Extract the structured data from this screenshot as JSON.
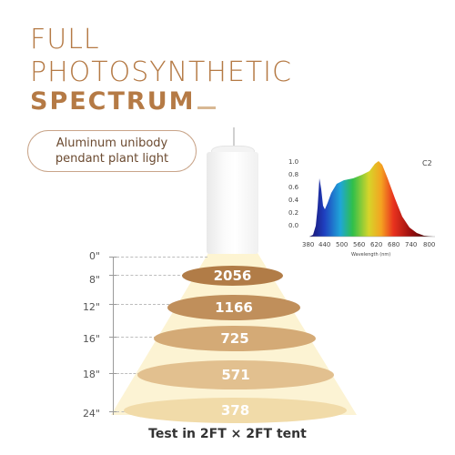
{
  "title": {
    "line1": "FULL",
    "line2": "PHOTOSYNTHETIC",
    "line3": "SPECTRUM"
  },
  "tagline": {
    "line1": "Aluminum unibody",
    "line2": "pendant plant light"
  },
  "colors": {
    "title": "#b57a45",
    "accent_dash": "#d8b893",
    "ring_dark": "#b17c47",
    "beam": "#fbe9b4"
  },
  "measurements": [
    {
      "distance": "0\"",
      "ppfd": ""
    },
    {
      "distance": "8\"",
      "ppfd": "2056"
    },
    {
      "distance": "12\"",
      "ppfd": "1166"
    },
    {
      "distance": "16\"",
      "ppfd": "725"
    },
    {
      "distance": "18\"",
      "ppfd": "571"
    },
    {
      "distance": "24\"",
      "ppfd": "378"
    }
  ],
  "footer": "Test in 2FT × 2FT tent",
  "spectrum": {
    "model": "C2",
    "xlabel": "Wavelength (nm)",
    "x_ticks": [
      "380",
      "440",
      "500",
      "560",
      "620",
      "680",
      "740",
      "800"
    ],
    "y_ticks": [
      "1.0",
      "0.8",
      "0.6",
      "0.4",
      "0.2",
      "0.0"
    ]
  }
}
